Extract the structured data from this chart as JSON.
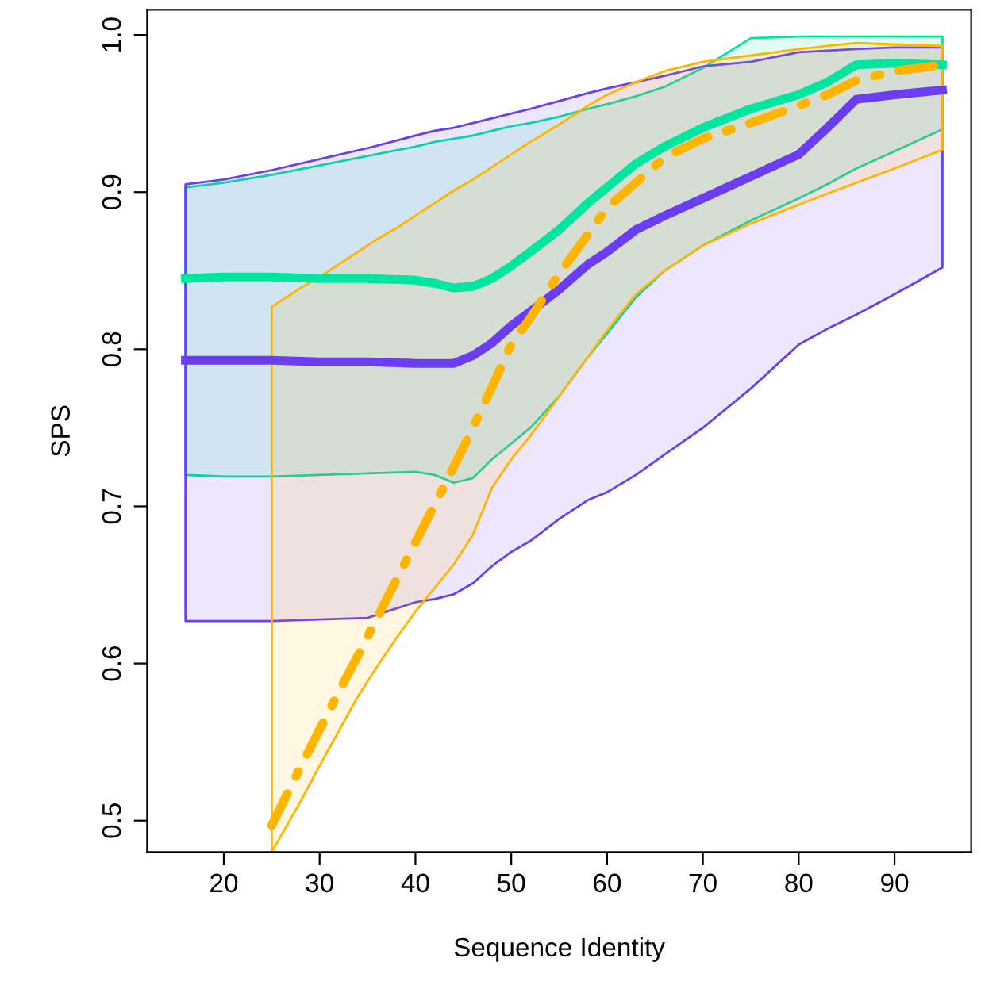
{
  "chart_data": {
    "type": "line",
    "xlabel": "Sequence Identity",
    "ylabel": "SPS",
    "xlim": [
      12,
      98
    ],
    "xticks": [
      20,
      30,
      40,
      50,
      60,
      70,
      80,
      90
    ],
    "ylim": [
      0.48,
      1.016
    ],
    "yticks": [
      0.5,
      0.6,
      0.7,
      0.8,
      0.9,
      {
        "value": 1.0,
        "label": "1.0"
      }
    ],
    "grid": false,
    "marker": "none",
    "series": [
      {
        "color": "#00e5a0",
        "line_style": "solid",
        "x": [
          16,
          20,
          25,
          30,
          35,
          40,
          42,
          44,
          46,
          48,
          50,
          52,
          55,
          58,
          60,
          63,
          66,
          70,
          75,
          80,
          83,
          86,
          90,
          95
        ],
        "values": [
          0.845,
          0.846,
          0.846,
          0.845,
          0.845,
          0.844,
          0.842,
          0.839,
          0.84,
          0.845,
          0.853,
          0.862,
          0.876,
          0.893,
          0.903,
          0.918,
          0.929,
          0.941,
          0.953,
          0.962,
          0.97,
          0.981,
          0.982,
          0.981
        ],
        "lower": [
          0.72,
          0.719,
          0.719,
          0.72,
          0.721,
          0.722,
          0.72,
          0.715,
          0.718,
          0.73,
          0.74,
          0.75,
          0.77,
          0.795,
          0.81,
          0.833,
          0.85,
          0.866,
          0.882,
          0.896,
          0.905,
          0.915,
          0.926,
          0.94
        ],
        "upper": [
          0.903,
          0.906,
          0.911,
          0.917,
          0.923,
          0.929,
          0.932,
          0.934,
          0.936,
          0.939,
          0.942,
          0.944,
          0.948,
          0.953,
          0.956,
          0.961,
          0.967,
          0.979,
          0.998,
          0.999,
          0.999,
          0.999,
          0.999,
          0.999
        ]
      },
      {
        "color": "#6a3df0",
        "line_style": "solid",
        "x": [
          16,
          20,
          25,
          30,
          35,
          40,
          42,
          44,
          46,
          48,
          50,
          52,
          55,
          58,
          60,
          63,
          66,
          70,
          75,
          80,
          83,
          86,
          90,
          95
        ],
        "values": [
          0.793,
          0.793,
          0.793,
          0.792,
          0.792,
          0.791,
          0.791,
          0.791,
          0.796,
          0.804,
          0.815,
          0.824,
          0.838,
          0.854,
          0.862,
          0.876,
          0.885,
          0.896,
          0.91,
          0.924,
          0.941,
          0.959,
          0.962,
          0.965
        ],
        "lower": [
          0.627,
          0.627,
          0.627,
          0.628,
          0.629,
          0.639,
          0.641,
          0.644,
          0.651,
          0.662,
          0.671,
          0.678,
          0.692,
          0.704,
          0.709,
          0.72,
          0.733,
          0.75,
          0.775,
          0.803,
          0.813,
          0.822,
          0.835,
          0.852
        ],
        "upper": [
          0.905,
          0.908,
          0.914,
          0.921,
          0.928,
          0.936,
          0.939,
          0.941,
          0.944,
          0.947,
          0.95,
          0.953,
          0.958,
          0.963,
          0.966,
          0.97,
          0.974,
          0.98,
          0.983,
          0.989,
          0.99,
          0.991,
          0.992,
          0.992
        ]
      },
      {
        "color": "#ffb400",
        "line_style": "dashed",
        "x": [
          25,
          28,
          30,
          32,
          34,
          36,
          38,
          40,
          42,
          44,
          46,
          48,
          50,
          52,
          55,
          58,
          60,
          63,
          66,
          70,
          75,
          80,
          83,
          86,
          90,
          95
        ],
        "values": [
          0.497,
          0.534,
          0.558,
          0.582,
          0.605,
          0.629,
          0.653,
          0.677,
          0.701,
          0.725,
          0.75,
          0.776,
          0.803,
          0.82,
          0.848,
          0.873,
          0.89,
          0.906,
          0.922,
          0.934,
          0.944,
          0.955,
          0.962,
          0.971,
          0.977,
          0.981
        ],
        "lower": [
          0.48,
          0.512,
          0.535,
          0.557,
          0.579,
          0.598,
          0.616,
          0.633,
          0.648,
          0.663,
          0.682,
          0.712,
          0.73,
          0.745,
          0.77,
          0.795,
          0.812,
          0.835,
          0.85,
          0.866,
          0.88,
          0.892,
          0.899,
          0.906,
          0.915,
          0.927
        ],
        "upper": [
          0.827,
          0.839,
          0.846,
          0.854,
          0.862,
          0.87,
          0.877,
          0.885,
          0.893,
          0.901,
          0.908,
          0.916,
          0.924,
          0.932,
          0.943,
          0.955,
          0.962,
          0.97,
          0.977,
          0.983,
          0.987,
          0.991,
          0.993,
          0.995,
          0.994,
          0.993
        ]
      }
    ]
  }
}
